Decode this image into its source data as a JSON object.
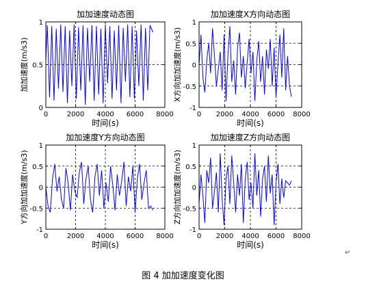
{
  "caption": "图 4  加加速度变化图",
  "return_mark": "↵",
  "colors": {
    "line": "#0000ff",
    "axes": "#000000",
    "grid": "#000000",
    "background": "#ffffff"
  },
  "chart_data": [
    {
      "type": "line",
      "title": "加加速度动态图",
      "xlabel": "时间(s)",
      "ylabel": "加加速度(m/s3)",
      "xlim": [
        0,
        8000
      ],
      "ylim": [
        0,
        1
      ],
      "xticks": [
        0,
        2000,
        4000,
        6000,
        8000
      ],
      "yticks": [
        0,
        0.5,
        1
      ],
      "xtick_labels": [
        "0",
        "2000",
        "4000",
        "6000",
        "8000"
      ],
      "ytick_labels": [
        "0",
        "0.5",
        "1"
      ],
      "grid": true,
      "x": [
        0,
        100,
        250,
        400,
        550,
        700,
        850,
        1000,
        1150,
        1300,
        1450,
        1600,
        1750,
        1900,
        2050,
        2200,
        2350,
        2500,
        2650,
        2800,
        2950,
        3100,
        3250,
        3400,
        3550,
        3700,
        3850,
        4000,
        4150,
        4300,
        4450,
        4600,
        4750,
        4900,
        5050,
        5200,
        5350,
        5500,
        5650,
        5800,
        5950,
        6100,
        6250,
        6400,
        6550,
        6700,
        6850,
        7000,
        7200
      ],
      "y": [
        0.55,
        0.96,
        0.12,
        0.95,
        0.08,
        0.92,
        0.22,
        0.97,
        0.18,
        0.95,
        0.05,
        0.9,
        0.25,
        0.97,
        0.1,
        0.94,
        0.2,
        0.96,
        0.03,
        0.93,
        0.3,
        0.96,
        0.08,
        0.95,
        0.15,
        0.92,
        0.05,
        0.97,
        0.28,
        0.95,
        0.1,
        0.9,
        0.2,
        0.96,
        0.05,
        0.93,
        0.3,
        0.97,
        0.12,
        0.95,
        0.1,
        0.9,
        0.25,
        0.97,
        0.08,
        0.93,
        0.2,
        0.96,
        0.88
      ]
    },
    {
      "type": "line",
      "title": "加加速度X方向动态图",
      "xlabel": "时间(s)",
      "ylabel": "X方向加加速度(m/s3)",
      "xlim": [
        0,
        8000
      ],
      "ylim": [
        -1,
        1
      ],
      "xticks": [
        0,
        2000,
        4000,
        6000,
        8000
      ],
      "yticks": [
        -1,
        -0.5,
        0,
        0.5,
        1
      ],
      "xtick_labels": [
        "0",
        "2000",
        "4000",
        "6000",
        "8000"
      ],
      "ytick_labels": [
        "-1",
        "-0.5",
        "0",
        "0.5",
        "1"
      ],
      "grid": true,
      "x": [
        0,
        150,
        300,
        450,
        600,
        750,
        900,
        1050,
        1200,
        1350,
        1500,
        1650,
        1800,
        1950,
        2100,
        2250,
        2400,
        2550,
        2700,
        2850,
        3000,
        3150,
        3300,
        3450,
        3600,
        3750,
        3900,
        4050,
        4200,
        4350,
        4500,
        4650,
        4800,
        4950,
        5100,
        5250,
        5400,
        5550,
        5700,
        5850,
        6000,
        6150,
        6300,
        6450,
        6600,
        6750,
        6900,
        7050,
        7200
      ],
      "y": [
        0.0,
        0.7,
        -0.3,
        -0.65,
        0.1,
        0.5,
        -0.2,
        0.85,
        0.2,
        -0.5,
        -0.1,
        0.3,
        -0.6,
        0.7,
        -0.85,
        0.2,
        0.9,
        -0.4,
        0.1,
        -0.7,
        0.4,
        0.75,
        -0.3,
        0.2,
        -0.55,
        0.05,
        0.6,
        -0.2,
        0.3,
        -0.85,
        0.1,
        0.55,
        -0.4,
        0.2,
        -0.7,
        0.35,
        -0.1,
        0.6,
        -0.5,
        0.4,
        -0.75,
        0.0,
        0.7,
        -0.3,
        0.85,
        -0.6,
        0.2,
        -0.5,
        -0.75
      ]
    },
    {
      "type": "line",
      "title": "加加速度Y方向动态图",
      "xlabel": "时间(s)",
      "ylabel": "Y方向加加速度(m/s3)",
      "xlim": [
        0,
        8000
      ],
      "ylim": [
        -1,
        1
      ],
      "xticks": [
        0,
        2000,
        4000,
        6000,
        8000
      ],
      "yticks": [
        -1,
        -0.5,
        0,
        0.5,
        1
      ],
      "xtick_labels": [
        "0",
        "2000",
        "4000",
        "6000",
        "8000"
      ],
      "ytick_labels": [
        "-1",
        "-0.5",
        "0",
        "0.5",
        "1"
      ],
      "grid": true,
      "x": [
        0,
        150,
        300,
        450,
        600,
        750,
        900,
        1050,
        1200,
        1350,
        1500,
        1650,
        1800,
        1950,
        2100,
        2250,
        2400,
        2550,
        2700,
        2850,
        3000,
        3150,
        3300,
        3450,
        3600,
        3750,
        3900,
        4050,
        4200,
        4350,
        4500,
        4650,
        4800,
        4950,
        5100,
        5250,
        5400,
        5550,
        5700,
        5850,
        6000,
        6150,
        6300,
        6450,
        6600,
        6750,
        6900,
        7050,
        7200
      ],
      "y": [
        0.0,
        -0.45,
        -0.6,
        0.2,
        0.55,
        -0.1,
        0.25,
        -0.3,
        -0.5,
        0.45,
        0.1,
        -0.55,
        0.3,
        -0.1,
        -0.25,
        0.35,
        0.6,
        -0.4,
        0.2,
        0.5,
        -0.3,
        -0.6,
        0.25,
        0.55,
        -0.2,
        0.4,
        -0.5,
        0.1,
        -0.35,
        0.5,
        0.05,
        -0.55,
        0.3,
        -0.2,
        0.15,
        0.6,
        -0.45,
        0.25,
        -0.1,
        0.5,
        -0.6,
        0.2,
        0.55,
        -0.3,
        0.1,
        0.4,
        -0.5,
        -0.45,
        -0.55
      ]
    },
    {
      "type": "line",
      "title": "加加速度Z方向动态图",
      "xlabel": "时间(s)",
      "ylabel": "Z方向加加速度(m/s3)",
      "xlim": [
        0,
        8000
      ],
      "ylim": [
        -1,
        1
      ],
      "xticks": [
        0,
        2000,
        4000,
        6000,
        8000
      ],
      "yticks": [
        -1,
        -0.5,
        0,
        0.5,
        1
      ],
      "xtick_labels": [
        "0",
        "2000",
        "4000",
        "6000",
        "8000"
      ],
      "ytick_labels": [
        "-1",
        "-0.5",
        "0",
        "0.5",
        "1"
      ],
      "grid": true,
      "x": [
        0,
        150,
        300,
        450,
        600,
        750,
        900,
        1050,
        1200,
        1350,
        1500,
        1650,
        1800,
        1950,
        2100,
        2250,
        2400,
        2550,
        2700,
        2850,
        3000,
        3150,
        3300,
        3450,
        3600,
        3750,
        3900,
        4050,
        4200,
        4350,
        4500,
        4650,
        4800,
        4950,
        5100,
        5250,
        5400,
        5550,
        5700,
        5850,
        6000,
        6150,
        6300,
        6450,
        6600,
        6750,
        6900,
        7050,
        7200
      ],
      "y": [
        -0.4,
        0.3,
        -0.2,
        -0.85,
        0.4,
        0.1,
        0.7,
        -0.5,
        -0.1,
        0.35,
        -0.6,
        0.8,
        -0.3,
        -0.9,
        0.2,
        0.5,
        -0.4,
        0.75,
        0.1,
        -0.6,
        0.3,
        -0.2,
        0.55,
        -0.85,
        0.2,
        0.6,
        -0.3,
        0.1,
        -0.5,
        0.8,
        -0.2,
        0.4,
        -0.7,
        0.2,
        0.5,
        -0.35,
        0.75,
        -0.15,
        0.3,
        -0.9,
        0.1,
        0.55,
        -0.4,
        0.2,
        -0.25,
        0.15,
        0.1,
        0.05,
        0.15
      ]
    }
  ]
}
